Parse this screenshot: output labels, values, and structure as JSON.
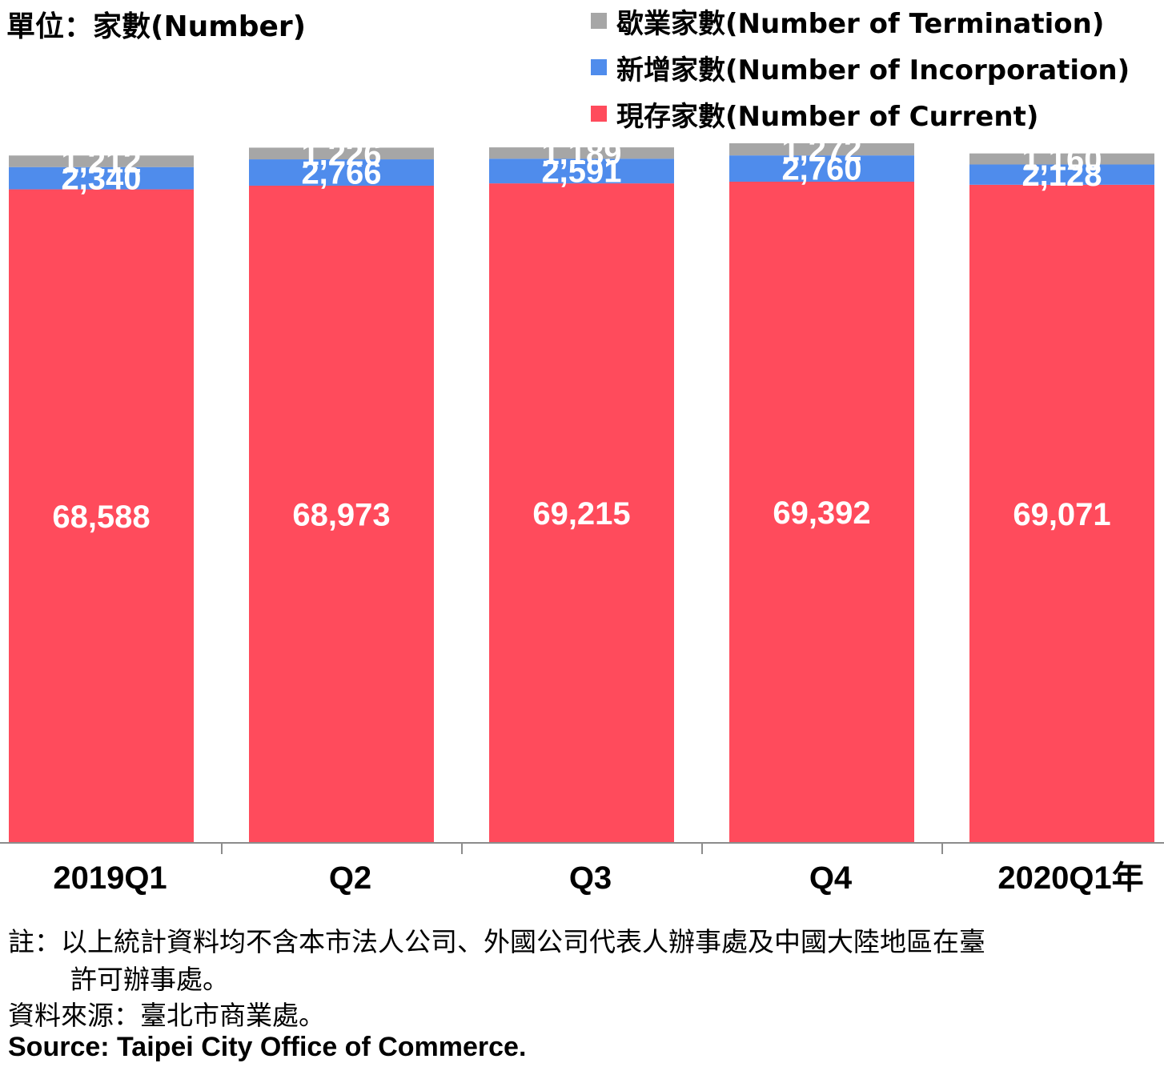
{
  "unit_label": "單位：家數(Number)",
  "chart_data": {
    "type": "bar",
    "stacked": true,
    "categories": [
      "2019Q1",
      "Q2",
      "Q3",
      "Q4",
      "2020Q1年"
    ],
    "series": [
      {
        "name": "現存家數(Number of Current)",
        "color": "#ff4b5c",
        "values": [
          68588,
          68973,
          69215,
          69392,
          69071
        ]
      },
      {
        "name": "新增家數(Number of Incorporation)",
        "color": "#4f8cec",
        "values": [
          2340,
          2766,
          2591,
          2760,
          2128
        ]
      },
      {
        "name": "歇業家數(Number of Termination)",
        "color": "#a6a6a6",
        "values": [
          1212,
          1226,
          1189,
          1272,
          1160
        ]
      }
    ],
    "legend": {
      "position": "top-right",
      "order": [
        "歇業家數(Number of Termination)",
        "新增家數(Number of Incorporation)",
        "現存家數(Number of Current)"
      ]
    },
    "data_labels": true,
    "grid": false
  },
  "notes": {
    "note_line1": "註：以上統計資料均不含本市法人公司、外國公司代表人辦事處及中國大陸地區在臺",
    "note_line2": "許可辦事處。",
    "source_zh": "資料來源：臺北市商業處。",
    "source_en": "Source: Taipei City Office of Commerce."
  }
}
